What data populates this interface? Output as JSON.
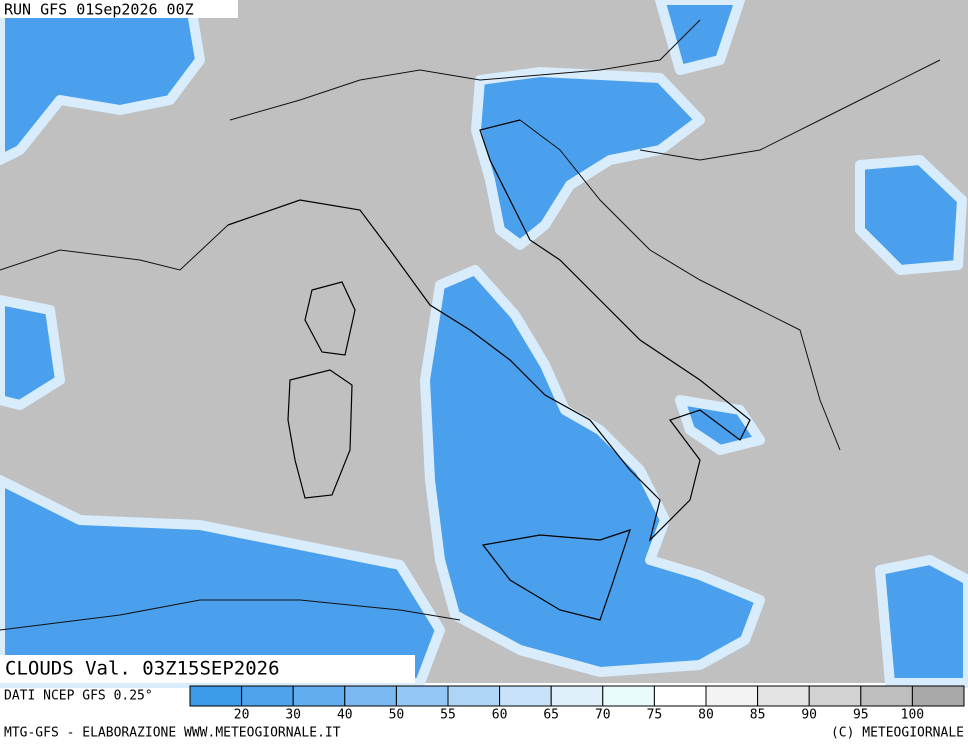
{
  "header": {
    "run": "RUN GFS 01Sep2026 00Z"
  },
  "map": {
    "field": "CLOUDS Val. 03Z15SEP2026"
  },
  "colorbar": {
    "levels": [
      20,
      30,
      40,
      50,
      55,
      60,
      65,
      70,
      75,
      80,
      85,
      90,
      95,
      100
    ],
    "colors": [
      "#3d9ae8",
      "#4ea3ec",
      "#62adf0",
      "#7ab9f2",
      "#94c7f5",
      "#aed5f7",
      "#c8e3f9",
      "#e0f0fb",
      "#e8fcfc",
      "#ffffff",
      "#f3f3f3",
      "#e4e4e4",
      "#d2d2d2",
      "#bebebe",
      "#a9a9a9"
    ]
  },
  "footer": {
    "source": "DATI NCEP GFS 0.25°",
    "credit": "MTG-GFS - ELABORAZIONE WWW.METEOGIORNALE.IT",
    "copyright": "(C) METEOGIORNALE"
  }
}
